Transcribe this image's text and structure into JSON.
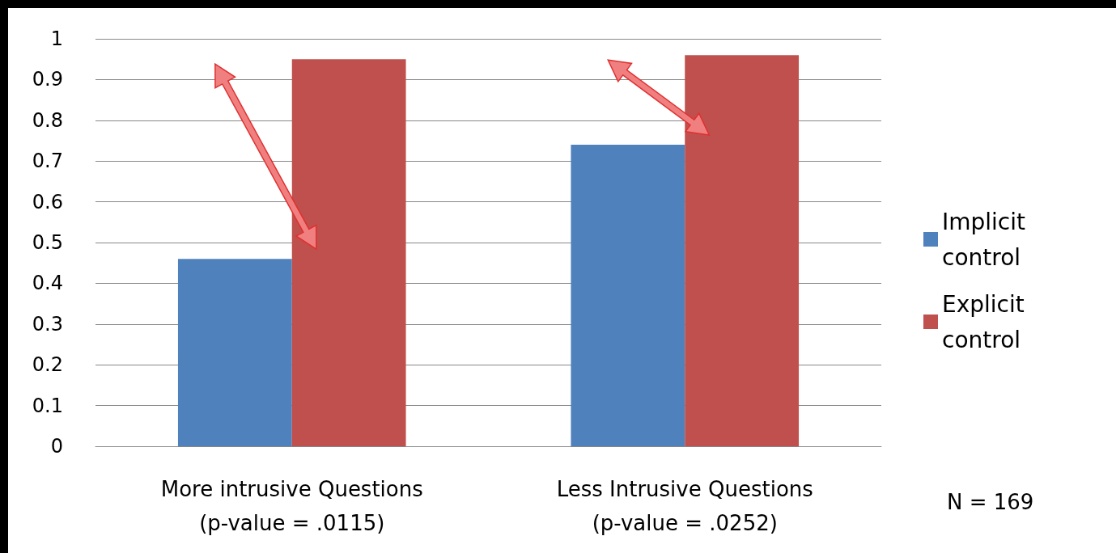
{
  "chart_data": {
    "type": "bar",
    "categories": [
      "More intrusive Questions\n(p-value = .0115)",
      "Less Intrusive Questions\n(p-value = .0252)"
    ],
    "series": [
      {
        "name": "Implicit control",
        "color": "#4f81bd",
        "values": [
          0.46,
          0.74
        ]
      },
      {
        "name": "Explicit control",
        "color": "#c0504d",
        "values": [
          0.95,
          0.96
        ]
      }
    ],
    "ylim": [
      0,
      1
    ],
    "yticks": [
      0,
      0.1,
      0.2,
      0.3,
      0.4,
      0.5,
      0.6,
      0.7,
      0.8,
      0.9,
      1
    ],
    "grid": "y",
    "legend": "right",
    "annotations": [
      "N = 169"
    ]
  }
}
